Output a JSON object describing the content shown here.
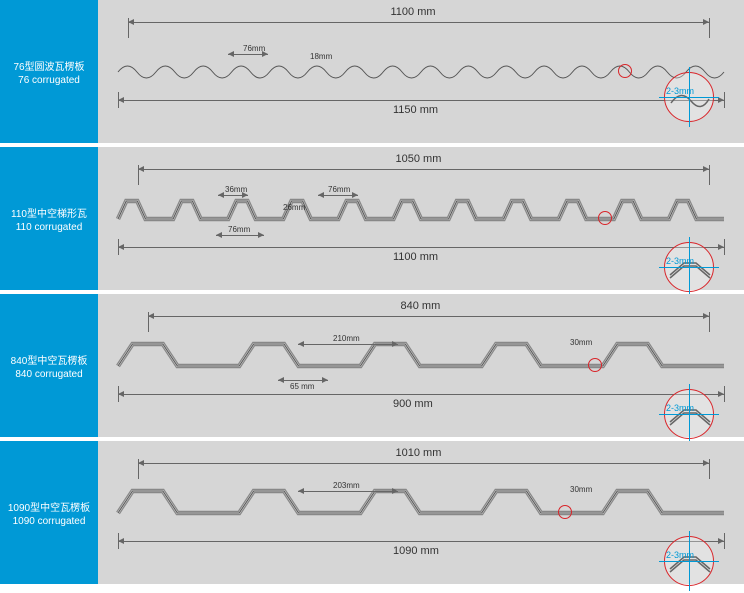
{
  "panels": [
    {
      "cn": "76型圆波瓦楞板",
      "en": "76 corrugated",
      "top_w": "1100 mm",
      "bot_w": "1150 mm",
      "thick": "2-3mm",
      "pitch": "76mm",
      "height": "18mm",
      "type": "wave"
    },
    {
      "cn": "110型中空梯形瓦",
      "en": "110 corrugated",
      "top_w": "1050 mm",
      "bot_w": "1100 mm",
      "thick": "2-3mm",
      "pitch": "76mm",
      "p2": "76mm",
      "height": "26mm",
      "p3": "36mm",
      "type": "trap-narrow"
    },
    {
      "cn": "840型中空瓦楞板",
      "en": "840 corrugated",
      "top_w": "840 mm",
      "bot_w": "900 mm",
      "thick": "2-3mm",
      "pitch": "210mm",
      "p2": "65 mm",
      "height": "30mm",
      "type": "trap-wide"
    },
    {
      "cn": "1090型中空瓦楞板",
      "en": "1090 corrugated",
      "top_w": "1010 mm",
      "bot_w": "1090 mm",
      "thick": "2-3mm",
      "pitch": "203mm",
      "height": "30mm",
      "type": "trap-wide"
    }
  ],
  "colors": {
    "label_bg": "#0099d6",
    "diag_bg": "#d6d6d6",
    "accent": "#d9252a",
    "line": "#666"
  }
}
